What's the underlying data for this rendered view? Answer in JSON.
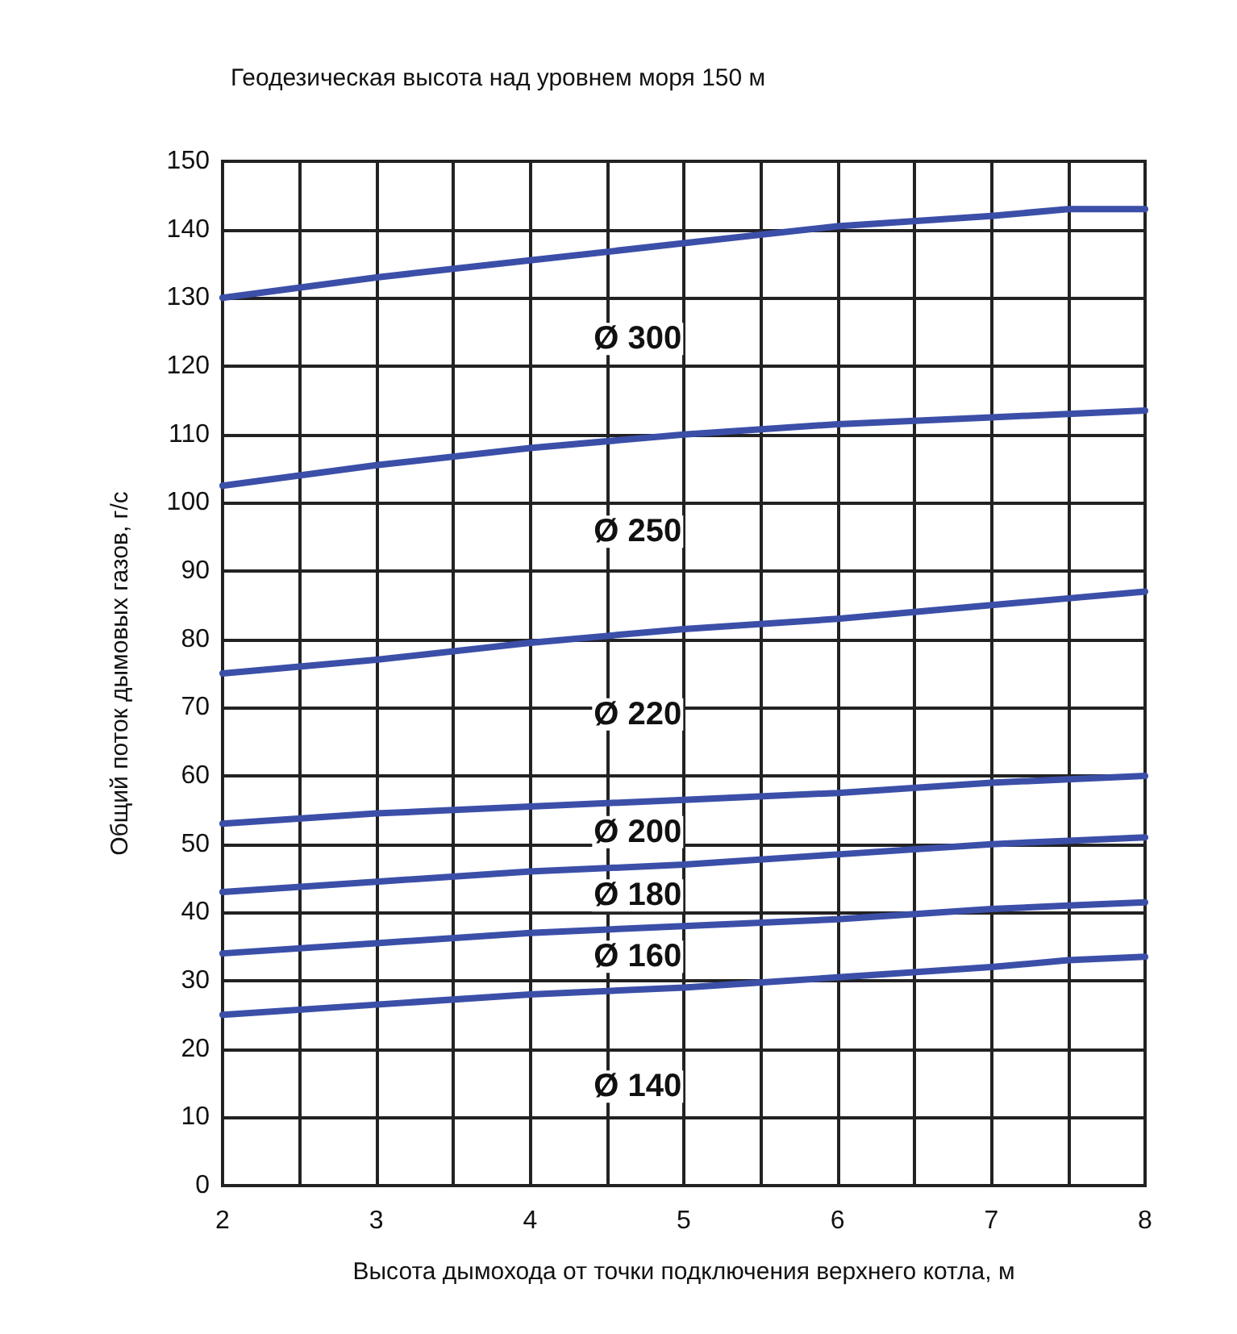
{
  "chart_data": {
    "type": "line",
    "title": "Геодезическая высота над уровнем моря 150 м",
    "xlabel": "Высота дымохода от точки подключения верхнего котла, м",
    "ylabel": "Общий поток дымовых газов, г/с",
    "x": [
      2,
      3,
      4,
      5,
      6,
      7,
      7.5,
      8
    ],
    "series": [
      {
        "color": "#3b4fa8",
        "values": [
          130,
          133,
          135.5,
          138,
          140.5,
          142,
          143,
          143
        ]
      },
      {
        "color": "#3b4fa8",
        "values": [
          102.5,
          105.5,
          108,
          110,
          111.5,
          112.5,
          113,
          113.5
        ]
      },
      {
        "color": "#3b4fa8",
        "values": [
          75,
          77,
          79.5,
          81.5,
          83,
          85,
          86,
          87
        ]
      },
      {
        "color": "#3b4fa8",
        "values": [
          53,
          54.5,
          55.5,
          56.5,
          57.5,
          59,
          59.5,
          60
        ]
      },
      {
        "color": "#3b4fa8",
        "values": [
          43,
          44.5,
          46,
          47,
          48.5,
          50,
          50.5,
          51
        ]
      },
      {
        "color": "#3b4fa8",
        "values": [
          34,
          35.5,
          37,
          38,
          39,
          40.5,
          41,
          41.5
        ]
      },
      {
        "color": "#3b4fa8",
        "values": [
          25,
          26.5,
          28,
          29,
          30.5,
          32,
          33,
          33.5
        ]
      }
    ],
    "annotations": [
      "Ø 300",
      "Ø 250",
      "Ø 220",
      "Ø 200",
      "Ø 180",
      "Ø 160",
      "Ø 140"
    ],
    "xlim": [
      2,
      8
    ],
    "xticks": [
      2,
      {
        "value": 2.5,
        "label": null
      },
      3,
      {
        "value": 3.5,
        "label": null
      },
      4,
      {
        "value": 4.5,
        "label": null
      },
      5,
      {
        "value": 5.5,
        "label": null
      },
      6,
      {
        "value": 6.5,
        "label": null
      },
      7,
      {
        "value": 7.5,
        "label": null
      },
      8
    ],
    "ylim": [
      0,
      150
    ],
    "yticks": [
      0,
      10,
      20,
      30,
      40,
      50,
      60,
      70,
      80,
      90,
      100,
      110,
      120,
      130,
      140,
      150
    ],
    "grid": true,
    "marker": "none",
    "line_style": "solid"
  }
}
